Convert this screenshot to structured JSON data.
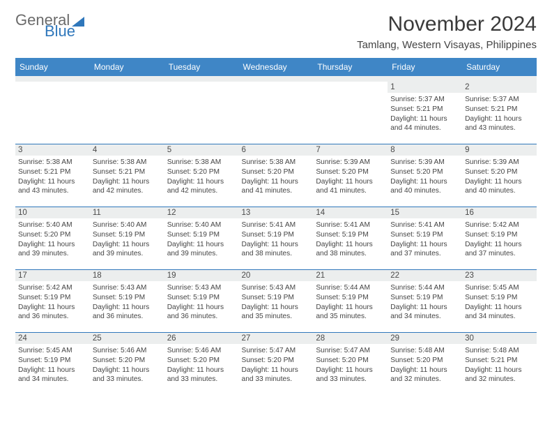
{
  "brand": {
    "word1": "General",
    "word2": "Blue"
  },
  "title": "November 2024",
  "location": "Tamlang, Western Visayas, Philippines",
  "colors": {
    "header_bg": "#3f86c6",
    "header_strip": "#eceeee",
    "row_border": "#2f77bb",
    "daynum_bg": "#eceeee",
    "text": "#333333",
    "logo_gray": "#6b6b6b",
    "logo_blue": "#2f77bb"
  },
  "weekdays": [
    "Sunday",
    "Monday",
    "Tuesday",
    "Wednesday",
    "Thursday",
    "Friday",
    "Saturday"
  ],
  "weeks": [
    [
      null,
      null,
      null,
      null,
      null,
      {
        "n": "1",
        "sunrise": "5:37 AM",
        "sunset": "5:21 PM",
        "daylight": "11 hours and 44 minutes."
      },
      {
        "n": "2",
        "sunrise": "5:37 AM",
        "sunset": "5:21 PM",
        "daylight": "11 hours and 43 minutes."
      }
    ],
    [
      {
        "n": "3",
        "sunrise": "5:38 AM",
        "sunset": "5:21 PM",
        "daylight": "11 hours and 43 minutes."
      },
      {
        "n": "4",
        "sunrise": "5:38 AM",
        "sunset": "5:21 PM",
        "daylight": "11 hours and 42 minutes."
      },
      {
        "n": "5",
        "sunrise": "5:38 AM",
        "sunset": "5:20 PM",
        "daylight": "11 hours and 42 minutes."
      },
      {
        "n": "6",
        "sunrise": "5:38 AM",
        "sunset": "5:20 PM",
        "daylight": "11 hours and 41 minutes."
      },
      {
        "n": "7",
        "sunrise": "5:39 AM",
        "sunset": "5:20 PM",
        "daylight": "11 hours and 41 minutes."
      },
      {
        "n": "8",
        "sunrise": "5:39 AM",
        "sunset": "5:20 PM",
        "daylight": "11 hours and 40 minutes."
      },
      {
        "n": "9",
        "sunrise": "5:39 AM",
        "sunset": "5:20 PM",
        "daylight": "11 hours and 40 minutes."
      }
    ],
    [
      {
        "n": "10",
        "sunrise": "5:40 AM",
        "sunset": "5:20 PM",
        "daylight": "11 hours and 39 minutes."
      },
      {
        "n": "11",
        "sunrise": "5:40 AM",
        "sunset": "5:19 PM",
        "daylight": "11 hours and 39 minutes."
      },
      {
        "n": "12",
        "sunrise": "5:40 AM",
        "sunset": "5:19 PM",
        "daylight": "11 hours and 39 minutes."
      },
      {
        "n": "13",
        "sunrise": "5:41 AM",
        "sunset": "5:19 PM",
        "daylight": "11 hours and 38 minutes."
      },
      {
        "n": "14",
        "sunrise": "5:41 AM",
        "sunset": "5:19 PM",
        "daylight": "11 hours and 38 minutes."
      },
      {
        "n": "15",
        "sunrise": "5:41 AM",
        "sunset": "5:19 PM",
        "daylight": "11 hours and 37 minutes."
      },
      {
        "n": "16",
        "sunrise": "5:42 AM",
        "sunset": "5:19 PM",
        "daylight": "11 hours and 37 minutes."
      }
    ],
    [
      {
        "n": "17",
        "sunrise": "5:42 AM",
        "sunset": "5:19 PM",
        "daylight": "11 hours and 36 minutes."
      },
      {
        "n": "18",
        "sunrise": "5:43 AM",
        "sunset": "5:19 PM",
        "daylight": "11 hours and 36 minutes."
      },
      {
        "n": "19",
        "sunrise": "5:43 AM",
        "sunset": "5:19 PM",
        "daylight": "11 hours and 36 minutes."
      },
      {
        "n": "20",
        "sunrise": "5:43 AM",
        "sunset": "5:19 PM",
        "daylight": "11 hours and 35 minutes."
      },
      {
        "n": "21",
        "sunrise": "5:44 AM",
        "sunset": "5:19 PM",
        "daylight": "11 hours and 35 minutes."
      },
      {
        "n": "22",
        "sunrise": "5:44 AM",
        "sunset": "5:19 PM",
        "daylight": "11 hours and 34 minutes."
      },
      {
        "n": "23",
        "sunrise": "5:45 AM",
        "sunset": "5:19 PM",
        "daylight": "11 hours and 34 minutes."
      }
    ],
    [
      {
        "n": "24",
        "sunrise": "5:45 AM",
        "sunset": "5:19 PM",
        "daylight": "11 hours and 34 minutes."
      },
      {
        "n": "25",
        "sunrise": "5:46 AM",
        "sunset": "5:20 PM",
        "daylight": "11 hours and 33 minutes."
      },
      {
        "n": "26",
        "sunrise": "5:46 AM",
        "sunset": "5:20 PM",
        "daylight": "11 hours and 33 minutes."
      },
      {
        "n": "27",
        "sunrise": "5:47 AM",
        "sunset": "5:20 PM",
        "daylight": "11 hours and 33 minutes."
      },
      {
        "n": "28",
        "sunrise": "5:47 AM",
        "sunset": "5:20 PM",
        "daylight": "11 hours and 33 minutes."
      },
      {
        "n": "29",
        "sunrise": "5:48 AM",
        "sunset": "5:20 PM",
        "daylight": "11 hours and 32 minutes."
      },
      {
        "n": "30",
        "sunrise": "5:48 AM",
        "sunset": "5:21 PM",
        "daylight": "11 hours and 32 minutes."
      }
    ]
  ],
  "labels": {
    "sunrise": "Sunrise: ",
    "sunset": "Sunset: ",
    "daylight": "Daylight: "
  }
}
